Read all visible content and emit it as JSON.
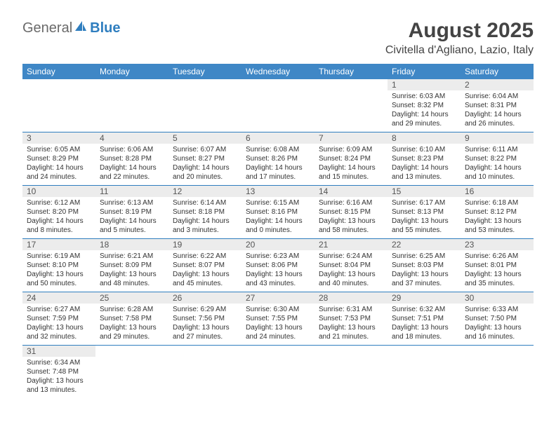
{
  "logo": {
    "text1": "General",
    "text2": "Blue"
  },
  "title": "August 2025",
  "location": "Civitella d'Agliano, Lazio, Italy",
  "days_of_week": [
    "Sunday",
    "Monday",
    "Tuesday",
    "Wednesday",
    "Thursday",
    "Friday",
    "Saturday"
  ],
  "colors": {
    "header_bg": "#3f87c6",
    "header_text": "#ffffff",
    "cell_border": "#2f7ebf",
    "daynum_bg": "#ececec",
    "text": "#333333"
  },
  "weeks": [
    [
      null,
      null,
      null,
      null,
      null,
      {
        "n": "1",
        "sunrise": "Sunrise: 6:03 AM",
        "sunset": "Sunset: 8:32 PM",
        "daylight": "Daylight: 14 hours and 29 minutes."
      },
      {
        "n": "2",
        "sunrise": "Sunrise: 6:04 AM",
        "sunset": "Sunset: 8:31 PM",
        "daylight": "Daylight: 14 hours and 26 minutes."
      }
    ],
    [
      {
        "n": "3",
        "sunrise": "Sunrise: 6:05 AM",
        "sunset": "Sunset: 8:29 PM",
        "daylight": "Daylight: 14 hours and 24 minutes."
      },
      {
        "n": "4",
        "sunrise": "Sunrise: 6:06 AM",
        "sunset": "Sunset: 8:28 PM",
        "daylight": "Daylight: 14 hours and 22 minutes."
      },
      {
        "n": "5",
        "sunrise": "Sunrise: 6:07 AM",
        "sunset": "Sunset: 8:27 PM",
        "daylight": "Daylight: 14 hours and 20 minutes."
      },
      {
        "n": "6",
        "sunrise": "Sunrise: 6:08 AM",
        "sunset": "Sunset: 8:26 PM",
        "daylight": "Daylight: 14 hours and 17 minutes."
      },
      {
        "n": "7",
        "sunrise": "Sunrise: 6:09 AM",
        "sunset": "Sunset: 8:24 PM",
        "daylight": "Daylight: 14 hours and 15 minutes."
      },
      {
        "n": "8",
        "sunrise": "Sunrise: 6:10 AM",
        "sunset": "Sunset: 8:23 PM",
        "daylight": "Daylight: 14 hours and 13 minutes."
      },
      {
        "n": "9",
        "sunrise": "Sunrise: 6:11 AM",
        "sunset": "Sunset: 8:22 PM",
        "daylight": "Daylight: 14 hours and 10 minutes."
      }
    ],
    [
      {
        "n": "10",
        "sunrise": "Sunrise: 6:12 AM",
        "sunset": "Sunset: 8:20 PM",
        "daylight": "Daylight: 14 hours and 8 minutes."
      },
      {
        "n": "11",
        "sunrise": "Sunrise: 6:13 AM",
        "sunset": "Sunset: 8:19 PM",
        "daylight": "Daylight: 14 hours and 5 minutes."
      },
      {
        "n": "12",
        "sunrise": "Sunrise: 6:14 AM",
        "sunset": "Sunset: 8:18 PM",
        "daylight": "Daylight: 14 hours and 3 minutes."
      },
      {
        "n": "13",
        "sunrise": "Sunrise: 6:15 AM",
        "sunset": "Sunset: 8:16 PM",
        "daylight": "Daylight: 14 hours and 0 minutes."
      },
      {
        "n": "14",
        "sunrise": "Sunrise: 6:16 AM",
        "sunset": "Sunset: 8:15 PM",
        "daylight": "Daylight: 13 hours and 58 minutes."
      },
      {
        "n": "15",
        "sunrise": "Sunrise: 6:17 AM",
        "sunset": "Sunset: 8:13 PM",
        "daylight": "Daylight: 13 hours and 55 minutes."
      },
      {
        "n": "16",
        "sunrise": "Sunrise: 6:18 AM",
        "sunset": "Sunset: 8:12 PM",
        "daylight": "Daylight: 13 hours and 53 minutes."
      }
    ],
    [
      {
        "n": "17",
        "sunrise": "Sunrise: 6:19 AM",
        "sunset": "Sunset: 8:10 PM",
        "daylight": "Daylight: 13 hours and 50 minutes."
      },
      {
        "n": "18",
        "sunrise": "Sunrise: 6:21 AM",
        "sunset": "Sunset: 8:09 PM",
        "daylight": "Daylight: 13 hours and 48 minutes."
      },
      {
        "n": "19",
        "sunrise": "Sunrise: 6:22 AM",
        "sunset": "Sunset: 8:07 PM",
        "daylight": "Daylight: 13 hours and 45 minutes."
      },
      {
        "n": "20",
        "sunrise": "Sunrise: 6:23 AM",
        "sunset": "Sunset: 8:06 PM",
        "daylight": "Daylight: 13 hours and 43 minutes."
      },
      {
        "n": "21",
        "sunrise": "Sunrise: 6:24 AM",
        "sunset": "Sunset: 8:04 PM",
        "daylight": "Daylight: 13 hours and 40 minutes."
      },
      {
        "n": "22",
        "sunrise": "Sunrise: 6:25 AM",
        "sunset": "Sunset: 8:03 PM",
        "daylight": "Daylight: 13 hours and 37 minutes."
      },
      {
        "n": "23",
        "sunrise": "Sunrise: 6:26 AM",
        "sunset": "Sunset: 8:01 PM",
        "daylight": "Daylight: 13 hours and 35 minutes."
      }
    ],
    [
      {
        "n": "24",
        "sunrise": "Sunrise: 6:27 AM",
        "sunset": "Sunset: 7:59 PM",
        "daylight": "Daylight: 13 hours and 32 minutes."
      },
      {
        "n": "25",
        "sunrise": "Sunrise: 6:28 AM",
        "sunset": "Sunset: 7:58 PM",
        "daylight": "Daylight: 13 hours and 29 minutes."
      },
      {
        "n": "26",
        "sunrise": "Sunrise: 6:29 AM",
        "sunset": "Sunset: 7:56 PM",
        "daylight": "Daylight: 13 hours and 27 minutes."
      },
      {
        "n": "27",
        "sunrise": "Sunrise: 6:30 AM",
        "sunset": "Sunset: 7:55 PM",
        "daylight": "Daylight: 13 hours and 24 minutes."
      },
      {
        "n": "28",
        "sunrise": "Sunrise: 6:31 AM",
        "sunset": "Sunset: 7:53 PM",
        "daylight": "Daylight: 13 hours and 21 minutes."
      },
      {
        "n": "29",
        "sunrise": "Sunrise: 6:32 AM",
        "sunset": "Sunset: 7:51 PM",
        "daylight": "Daylight: 13 hours and 18 minutes."
      },
      {
        "n": "30",
        "sunrise": "Sunrise: 6:33 AM",
        "sunset": "Sunset: 7:50 PM",
        "daylight": "Daylight: 13 hours and 16 minutes."
      }
    ],
    [
      {
        "n": "31",
        "sunrise": "Sunrise: 6:34 AM",
        "sunset": "Sunset: 7:48 PM",
        "daylight": "Daylight: 13 hours and 13 minutes."
      },
      null,
      null,
      null,
      null,
      null,
      null
    ]
  ]
}
